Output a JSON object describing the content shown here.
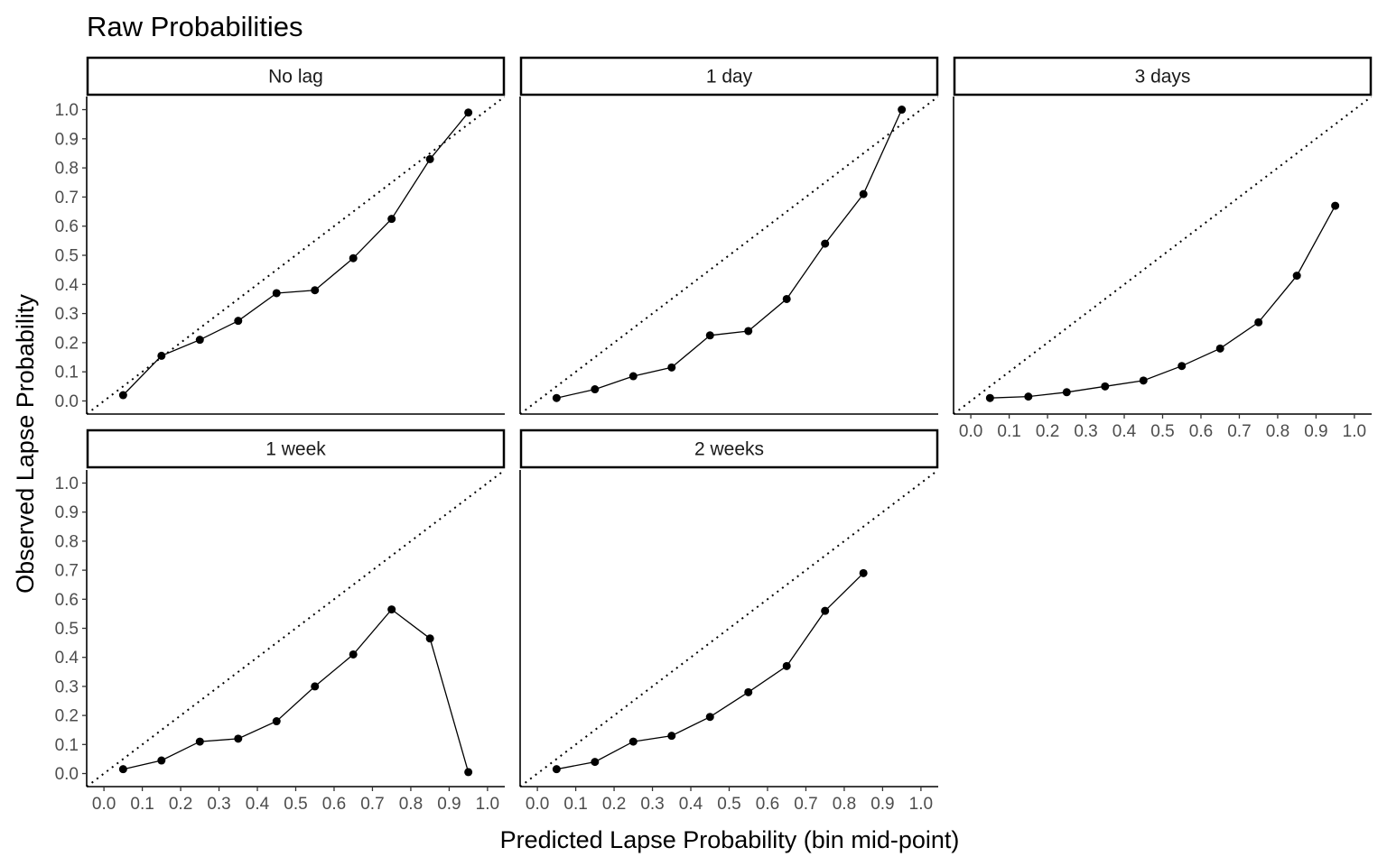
{
  "title": "Raw Probabilities",
  "xlabel": "Predicted Lapse Probability (bin mid-point)",
  "ylabel": "Observed Lapse Probability",
  "chart_data": {
    "type": "line",
    "title": "Raw Probabilities",
    "xlabel": "Predicted Lapse Probability (bin mid-point)",
    "ylabel": "Observed Lapse Probability",
    "xlim": [
      0.0,
      1.0
    ],
    "ylim": [
      0.0,
      1.0
    ],
    "tick_values": [
      0.0,
      0.1,
      0.2,
      0.3,
      0.4,
      0.5,
      0.6,
      0.7,
      0.8,
      0.9,
      1.0
    ],
    "tick_labels": [
      "0.0",
      "0.1",
      "0.2",
      "0.3",
      "0.4",
      "0.5",
      "0.6",
      "0.7",
      "0.8",
      "0.9",
      "1.0"
    ],
    "reference_line": "dotted diagonal y = x",
    "grid": false,
    "panels": [
      {
        "label": "No lag",
        "x": [
          0.05,
          0.15,
          0.25,
          0.35,
          0.45,
          0.55,
          0.65,
          0.75,
          0.85,
          0.95
        ],
        "y": [
          0.02,
          0.155,
          0.21,
          0.275,
          0.37,
          0.38,
          0.49,
          0.625,
          0.83,
          0.99
        ]
      },
      {
        "label": "1 day",
        "x": [
          0.05,
          0.15,
          0.25,
          0.35,
          0.45,
          0.55,
          0.65,
          0.75,
          0.85,
          0.95
        ],
        "y": [
          0.01,
          0.04,
          0.085,
          0.115,
          0.225,
          0.24,
          0.35,
          0.54,
          0.71,
          1.0
        ]
      },
      {
        "label": "3 days",
        "x": [
          0.05,
          0.15,
          0.25,
          0.35,
          0.45,
          0.55,
          0.65,
          0.75,
          0.85,
          0.95
        ],
        "y": [
          0.01,
          0.015,
          0.03,
          0.05,
          0.07,
          0.12,
          0.18,
          0.27,
          0.43,
          0.67
        ]
      },
      {
        "label": "1 week",
        "x": [
          0.05,
          0.15,
          0.25,
          0.35,
          0.45,
          0.55,
          0.65,
          0.75,
          0.85,
          0.95
        ],
        "y": [
          0.015,
          0.045,
          0.11,
          0.12,
          0.18,
          0.3,
          0.41,
          0.565,
          0.465,
          0.005
        ]
      },
      {
        "label": "2 weeks",
        "x": [
          0.05,
          0.15,
          0.25,
          0.35,
          0.45,
          0.55,
          0.65,
          0.75,
          0.85
        ],
        "y": [
          0.015,
          0.04,
          0.11,
          0.13,
          0.195,
          0.28,
          0.37,
          0.56,
          0.69
        ]
      }
    ]
  }
}
